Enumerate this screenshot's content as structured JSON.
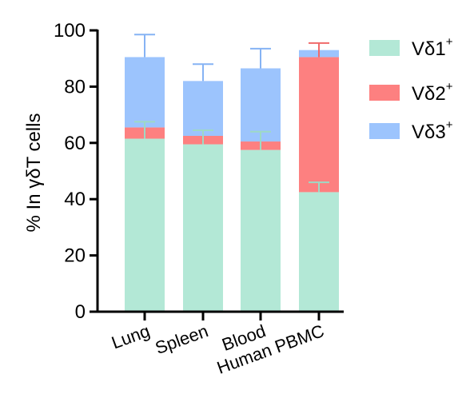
{
  "chart_data": {
    "type": "bar",
    "stacked": true,
    "title": "",
    "xlabel": "",
    "ylabel": "% In γδT cells",
    "ylim": [
      0,
      100
    ],
    "yticks": [
      0,
      20,
      40,
      60,
      80,
      100
    ],
    "categories": [
      "Lung",
      "Spleen",
      "Blood",
      "Human PBMC"
    ],
    "series": [
      {
        "name": "Vδ1+",
        "label_main": "Vδ1",
        "label_sup": "+",
        "color": "#b3e8d6",
        "values": [
          61.5,
          59.5,
          57.5,
          42.5
        ],
        "errors": [
          6.0,
          5.0,
          6.5,
          3.5
        ]
      },
      {
        "name": "Vδ2+",
        "label_main": "Vδ2",
        "label_sup": "+",
        "color": "#fd8080",
        "values": [
          4.0,
          3.0,
          3.0,
          48.0
        ],
        "errors": [
          0,
          0,
          0,
          5.0
        ]
      },
      {
        "name": "Vδ3+",
        "label_main": "Vδ3",
        "label_sup": "+",
        "color": "#9cc4fd",
        "values": [
          25.0,
          19.5,
          26.0,
          2.5
        ],
        "errors": [
          8.0,
          6.0,
          7.0,
          0
        ]
      }
    ],
    "legend_position": "right",
    "grid": false
  }
}
